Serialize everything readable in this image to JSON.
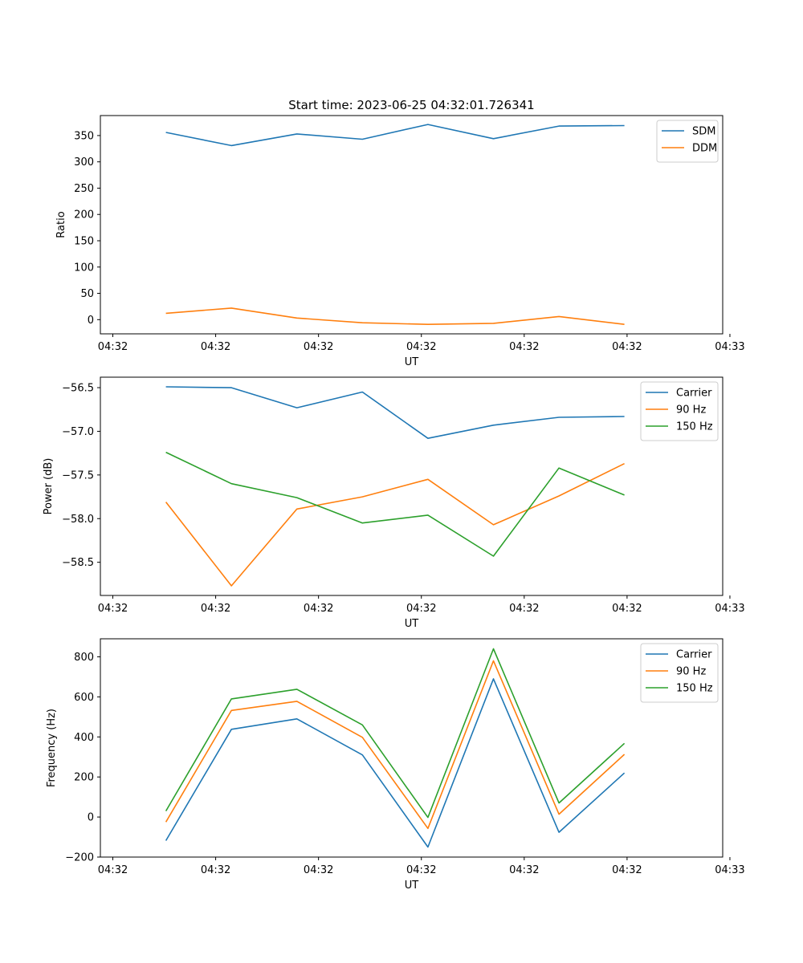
{
  "figure": {
    "title": "Start time: 2023-06-25 04:32:01.726341"
  },
  "chart_data": [
    {
      "type": "line",
      "ylabel": "Ratio",
      "xlabel": "UT",
      "xlim": [
        0,
        9.5
      ],
      "ylim": [
        -27,
        388
      ],
      "x": [
        1,
        2,
        3,
        4,
        5,
        6,
        7,
        8
      ],
      "xticks": [
        0.19,
        1.76,
        3.33,
        4.9,
        6.47,
        8.04,
        9.61
      ],
      "xtick_labels": [
        "04:32",
        "04:32",
        "04:32",
        "04:32",
        "04:32",
        "04:32",
        "04:33"
      ],
      "yticks": [
        0,
        50,
        100,
        150,
        200,
        250,
        300,
        350
      ],
      "ytick_labels": [
        "0",
        "50",
        "100",
        "150",
        "200",
        "250",
        "300",
        "350"
      ],
      "legend": "top-right",
      "series": [
        {
          "name": "SDM",
          "color": "#1f77b4",
          "values": [
            356,
            331,
            353,
            343,
            371,
            344,
            368,
            369
          ]
        },
        {
          "name": "DDM",
          "color": "#ff7f0e",
          "values": [
            12,
            22,
            3,
            -6,
            -9,
            -7,
            6,
            -9
          ]
        }
      ]
    },
    {
      "type": "line",
      "ylabel": "Power (dB)",
      "xlabel": "UT",
      "xlim": [
        0,
        9.5
      ],
      "ylim": [
        -58.88,
        -56.38
      ],
      "x": [
        1,
        2,
        3,
        4,
        5,
        6,
        7,
        8
      ],
      "xticks": [
        0.19,
        1.76,
        3.33,
        4.9,
        6.47,
        8.04,
        9.61
      ],
      "xtick_labels": [
        "04:32",
        "04:32",
        "04:32",
        "04:32",
        "04:32",
        "04:32",
        "04:33"
      ],
      "yticks": [
        -58.5,
        -58.0,
        -57.5,
        -57.0,
        -56.5
      ],
      "ytick_labels": [
        "−58.5",
        "−58.0",
        "−57.5",
        "−57.0",
        "−56.5"
      ],
      "legend": "top-right",
      "series": [
        {
          "name": "Carrier",
          "color": "#1f77b4",
          "values": [
            -56.49,
            -56.5,
            -56.73,
            -56.55,
            -57.08,
            -56.93,
            -56.84,
            -56.83
          ]
        },
        {
          "name": "90 Hz",
          "color": "#ff7f0e",
          "values": [
            -57.81,
            -58.77,
            -57.89,
            -57.75,
            -57.55,
            -58.07,
            -57.74,
            -57.37
          ]
        },
        {
          "name": "150 Hz",
          "color": "#2ca02c",
          "values": [
            -57.24,
            -57.6,
            -57.76,
            -58.05,
            -57.96,
            -58.43,
            -57.42,
            -57.73
          ]
        }
      ]
    },
    {
      "type": "line",
      "ylabel": "Frequency (Hz)",
      "xlabel": "UT",
      "xlim": [
        0,
        9.5
      ],
      "ylim": [
        -200,
        890
      ],
      "x": [
        1,
        2,
        3,
        4,
        5,
        6,
        7,
        8
      ],
      "xticks": [
        0.19,
        1.76,
        3.33,
        4.9,
        6.47,
        8.04,
        9.61
      ],
      "xtick_labels": [
        "04:32",
        "04:32",
        "04:32",
        "04:32",
        "04:32",
        "04:32",
        "04:33"
      ],
      "yticks": [
        -200,
        0,
        200,
        400,
        600,
        800
      ],
      "ytick_labels": [
        "−200",
        "0",
        "200",
        "400",
        "600",
        "800"
      ],
      "legend": "top-right",
      "series": [
        {
          "name": "Carrier",
          "color": "#1f77b4",
          "values": [
            -118,
            438,
            490,
            310,
            -150,
            690,
            -76,
            220
          ]
        },
        {
          "name": "90 Hz",
          "color": "#ff7f0e",
          "values": [
            -25,
            532,
            578,
            398,
            -57,
            780,
            14,
            313
          ]
        },
        {
          "name": "150 Hz",
          "color": "#2ca02c",
          "values": [
            30,
            590,
            638,
            460,
            -2,
            840,
            70,
            368
          ]
        }
      ]
    }
  ]
}
